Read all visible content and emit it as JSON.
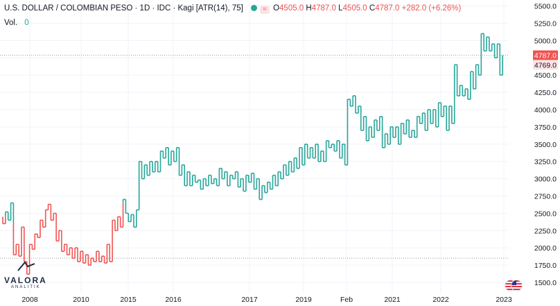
{
  "legend": {
    "title": "U.S. DOLLAR / COLOMBIAN PESO · 1D · IDC · Kagi [ATR(14), 75]",
    "open_label": "O",
    "open": "4505.0",
    "high_label": "H",
    "high": "4787.0",
    "low_label": "L",
    "low": "4505.0",
    "close_label": "C",
    "close": "4787.0",
    "change": "+282.0 (+6.26%)",
    "vol_label": "Vol.",
    "vol_value": "0",
    "wave_glyph": "≈"
  },
  "logo": {
    "brand": "VALORA",
    "sub": "ANALITIK"
  },
  "colors": {
    "up": "#26a69a",
    "down": "#ef5350",
    "grid": "#f0f3fa",
    "axis_text": "#131722",
    "dash": "#9598a1"
  },
  "chart_data": {
    "type": "kagi",
    "y_axis": {
      "min": 1500,
      "max": 5500,
      "ticks": [
        1500,
        1750,
        2000,
        2250,
        2500,
        2750,
        3000,
        3250,
        3500,
        3750,
        4000,
        4250,
        4500,
        4750,
        5000,
        5250,
        5500
      ]
    },
    "x_axis": {
      "ticks": [
        "2008",
        "2010",
        "2015",
        "2016",
        "2017",
        "2019",
        "Feb",
        "2021",
        "2022",
        "2023"
      ]
    },
    "grid": true,
    "price_labels": [
      {
        "value": 4787.0,
        "text": "4787.0"
      },
      {
        "value": 4769.0,
        "text": "4769.0"
      }
    ],
    "reference_lines": [
      1850,
      4787
    ],
    "series": [
      {
        "values": [
          2450,
          2350,
          2520,
          2400,
          2650,
          1900,
          2050,
          1880,
          2300,
          1800,
          1620,
          2050,
          1980,
          2200,
          2150,
          2400,
          2300,
          2550,
          2630,
          2400,
          2500,
          2100,
          2250,
          1950,
          2050,
          1900,
          2000,
          1850,
          2000,
          1800,
          1950,
          1780,
          1900,
          1750,
          1850,
          1800,
          1950,
          1800,
          1880,
          1780,
          2050,
          1800,
          2400,
          2250,
          2450,
          2300,
          2700,
          2500,
          2380,
          2480,
          2300,
          2550,
          3250,
          3000,
          3200,
          3050,
          3250,
          3100,
          3250,
          3100,
          3400,
          3300,
          3450,
          3200,
          3400,
          3250,
          3450,
          3050,
          3200,
          2900,
          3100,
          2900,
          3050,
          2950,
          2980,
          2850,
          3000,
          2900,
          3050,
          2930,
          3000,
          2900,
          3150,
          3000,
          3100,
          2900,
          3050,
          3000,
          3100,
          2880,
          3000,
          2820,
          3050,
          2950,
          3080,
          2850,
          3000,
          2700,
          2900,
          2800,
          2950,
          2850,
          3050,
          2900,
          3100,
          3000,
          3200,
          3050,
          3250,
          3100,
          3300,
          3150,
          3450,
          3200,
          3500,
          3300,
          3450,
          3300,
          3500,
          3250,
          3400,
          3250,
          3550,
          3450,
          3500,
          3400,
          3550,
          3300,
          3500,
          3200,
          4150,
          4050,
          4200,
          3950,
          4050,
          3700,
          3900,
          3550,
          3750,
          3600,
          3850,
          3700,
          3900,
          3450,
          3650,
          3500,
          3750,
          3600,
          3750,
          3500,
          3800,
          3650,
          3850,
          3600,
          3700,
          3600,
          3900,
          3800,
          3950,
          3700,
          4000,
          3800,
          4000,
          3750,
          4100,
          3900,
          4050,
          3700,
          4050,
          3800,
          4650,
          4200,
          4350,
          4200,
          4300,
          4150,
          4550,
          4300,
          4650,
          4500,
          5100,
          4850,
          5050,
          4850,
          4950,
          4750,
          4950,
          4500,
          4787
        ]
      }
    ]
  }
}
